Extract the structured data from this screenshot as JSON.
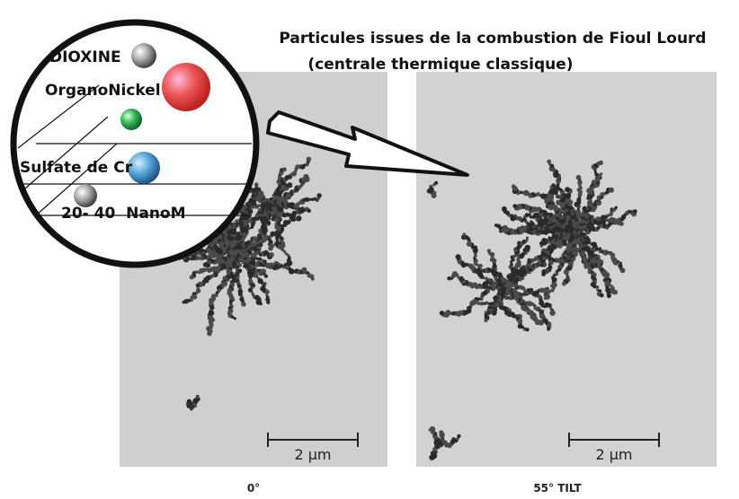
{
  "title": {
    "line1": "Particules issues de la combustion de Fioul Lourd",
    "line2": "(centrale thermique classique)"
  },
  "legend": {
    "items": [
      "DIOXINE",
      "OrganoNickel",
      "Sulfate de Cr",
      "20- 40  NanoM"
    ]
  },
  "panels": [
    {
      "scale_bar": "2 μm",
      "caption": "0°"
    },
    {
      "scale_bar": "2 μm",
      "caption": "55° TILT"
    }
  ]
}
